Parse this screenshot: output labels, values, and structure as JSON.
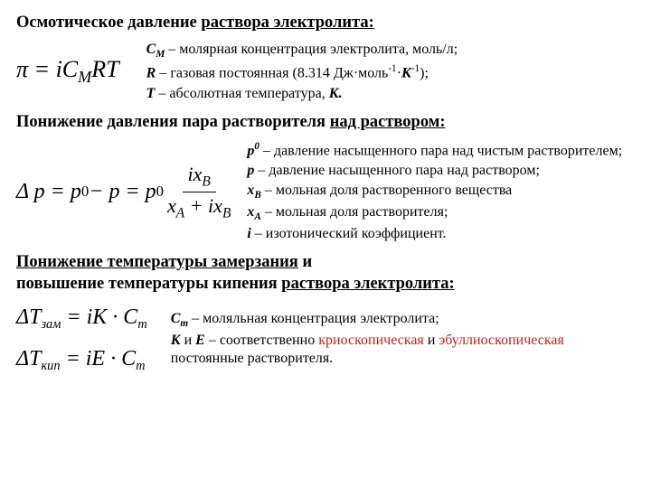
{
  "sec1": {
    "heading_plain": "Осмотическое давление",
    "heading_ul": "раствора электролита:",
    "formula_html": "π = iC<span class='sub'>M</span>RT",
    "d1_sym": "C",
    "d1_sub": "М",
    "d1_text": "– молярная  концентрация электролита, моль/л;",
    "d2_sym": "R",
    "d2_text_a": " – газовая постоянная (8.314 Дж·моль",
    "d2_sup1": "-1",
    "d2_mid": "·",
    "d2_K": "К",
    "d2_sup2": "-1",
    "d2_text_b": ");",
    "d3_sym": "Т",
    "d3_text": "– абсолютная температура, ",
    "d3_K": "К."
  },
  "sec2": {
    "heading_plain": "Понижение давления пара растворителя ",
    "heading_ul": "над раствором:",
    "formula_pre": "Δ p = p",
    "formula_sup": "0",
    "formula_mid": " − p = p",
    "formula_sup2": "0",
    "frac_num": "ix<span class='sub'>B</span>",
    "frac_den": "x<span class='sub'>A</span> + ix<span class='sub'>B</span>",
    "d1_sym": "p",
    "d1_sup": "0",
    "d1_text": "– давление насыщенного пара над чистым растворителем;",
    "d2_sym": "p",
    "d2_text": "– давление насыщенного пара над раствором;",
    "d3_sym": "x",
    "d3_sub": "B",
    "d3_text": "– мольная доля растворенного вещества",
    "d4_sym": "x",
    "d4_sub": "A",
    "d4_text": "– мольная доля растворителя;",
    "d5_sym": "i",
    "d5_text": " –  изотонический коэффициент."
  },
  "sec3": {
    "heading_l1a": "Понижение температуры замерзания",
    "heading_l1b": " и",
    "heading_l2a": "повышение температуры кипения ",
    "heading_l2b": "раствора электролита:",
    "f_line1": "ΔТ<span class='dTsub'>зам</span> = iK · C<span class='dTsub'>m</span>",
    "f_line2": "ΔТ<span class='dTsub'>кип</span> = iE · C<span class='dTsub'>m</span>",
    "d1_sym": "С",
    "d1_sub": "m",
    "d1_text": "– моляльная  концентрация электролита;",
    "d2_K": "К",
    "d2_and": " и ",
    "d2_E": "Е",
    "d2_text_a": " – соответственно ",
    "d2_red1": "криоскопическая",
    "d2_text_b": " и ",
    "d2_red2": "эбуллиоскопическая",
    "d2_text_c": " постоянные растворителя."
  }
}
